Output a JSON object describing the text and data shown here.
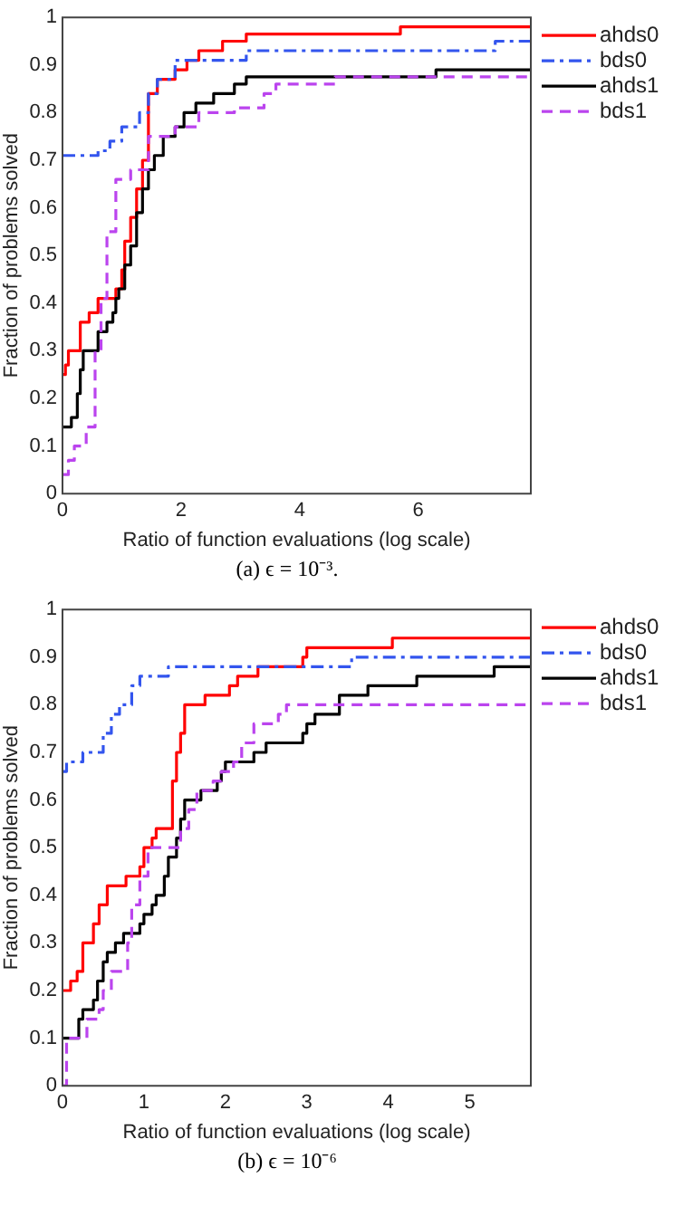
{
  "chart_data": [
    {
      "type": "step",
      "xlabel": "Ratio of function evaluations (log scale)",
      "ylabel": "Fraction of problems solved",
      "annotations": [
        "(a) ϵ = 10⁻³."
      ],
      "xlim": [
        0,
        7.9
      ],
      "xticks": [
        0,
        2,
        4,
        6
      ],
      "ylim": [
        0,
        1
      ],
      "yticks": [
        0,
        0.1,
        0.2,
        0.3,
        0.4,
        0.5,
        0.6,
        0.7,
        0.8,
        0.9,
        1
      ],
      "grid": false,
      "legend": "top right",
      "series": [
        {
          "name": "ahds0",
          "color": "#ff0000",
          "line_style": "solid",
          "x": [
            0,
            0.05,
            0.1,
            0.3,
            0.45,
            0.6,
            0.9,
            1.0,
            1.05,
            1.15,
            1.25,
            1.35,
            1.45,
            1.6,
            1.9,
            2.1,
            2.3,
            2.7,
            3.1,
            5.7,
            7.9
          ],
          "values": [
            0.25,
            0.27,
            0.3,
            0.36,
            0.38,
            0.41,
            0.43,
            0.47,
            0.53,
            0.58,
            0.64,
            0.7,
            0.84,
            0.87,
            0.89,
            0.91,
            0.93,
            0.95,
            0.965,
            0.98,
            0.98
          ]
        },
        {
          "name": "bds0",
          "color": "#3355ee",
          "line_style": "dashdot",
          "x": [
            0,
            0.6,
            0.8,
            1.0,
            1.3,
            1.45,
            1.6,
            1.9,
            3.1,
            7.3,
            7.9
          ],
          "values": [
            0.71,
            0.72,
            0.74,
            0.77,
            0.8,
            0.84,
            0.87,
            0.91,
            0.93,
            0.95,
            0.95
          ]
        },
        {
          "name": "ahds1",
          "color": "#000000",
          "line_style": "solid",
          "x": [
            0,
            0.15,
            0.25,
            0.3,
            0.35,
            0.6,
            0.75,
            0.85,
            0.9,
            0.95,
            1.05,
            1.15,
            1.25,
            1.35,
            1.45,
            1.55,
            1.7,
            1.9,
            2.05,
            2.25,
            2.55,
            2.9,
            3.1,
            6.3,
            7.9
          ],
          "values": [
            0.14,
            0.16,
            0.21,
            0.26,
            0.3,
            0.34,
            0.36,
            0.38,
            0.41,
            0.43,
            0.48,
            0.52,
            0.59,
            0.64,
            0.68,
            0.71,
            0.75,
            0.77,
            0.8,
            0.82,
            0.84,
            0.86,
            0.875,
            0.89,
            0.89
          ]
        },
        {
          "name": "bds1",
          "color": "#bb44ee",
          "line_style": "dashed",
          "x": [
            0,
            0.1,
            0.2,
            0.4,
            0.55,
            0.65,
            0.75,
            0.9,
            1.15,
            1.45,
            1.9,
            2.3,
            2.9,
            3.4,
            3.6,
            4.6,
            7.9
          ],
          "values": [
            0.04,
            0.07,
            0.1,
            0.14,
            0.3,
            0.41,
            0.55,
            0.66,
            0.68,
            0.75,
            0.77,
            0.8,
            0.81,
            0.84,
            0.86,
            0.875,
            0.875
          ]
        }
      ]
    },
    {
      "type": "step",
      "xlabel": "Ratio of function evaluations (log scale)",
      "ylabel": "Fraction of problems solved",
      "annotations": [
        "(b) ϵ = 10⁻⁶"
      ],
      "xlim": [
        0,
        5.75
      ],
      "xticks": [
        0,
        1,
        2,
        3,
        4,
        5
      ],
      "ylim": [
        0,
        1
      ],
      "yticks": [
        0,
        0.1,
        0.2,
        0.3,
        0.4,
        0.5,
        0.6,
        0.7,
        0.8,
        0.9,
        1
      ],
      "grid": false,
      "legend": "top right",
      "series": [
        {
          "name": "ahds0",
          "color": "#ff0000",
          "line_style": "solid",
          "x": [
            0,
            0.1,
            0.18,
            0.25,
            0.38,
            0.45,
            0.55,
            0.78,
            0.95,
            1.0,
            1.1,
            1.15,
            1.35,
            1.4,
            1.45,
            1.5,
            1.75,
            2.05,
            2.15,
            2.4,
            2.95,
            3.0,
            4.05,
            5.75
          ],
          "values": [
            0.2,
            0.22,
            0.24,
            0.3,
            0.34,
            0.38,
            0.42,
            0.44,
            0.46,
            0.5,
            0.52,
            0.54,
            0.64,
            0.7,
            0.74,
            0.8,
            0.82,
            0.84,
            0.86,
            0.88,
            0.9,
            0.92,
            0.94,
            0.94
          ]
        },
        {
          "name": "bds0",
          "color": "#3355ee",
          "line_style": "dashdot",
          "x": [
            0,
            0.05,
            0.25,
            0.5,
            0.6,
            0.7,
            0.85,
            0.95,
            1.3,
            3.55,
            5.75
          ],
          "values": [
            0.66,
            0.68,
            0.7,
            0.74,
            0.78,
            0.8,
            0.84,
            0.86,
            0.88,
            0.9,
            0.9
          ]
        },
        {
          "name": "ahds1",
          "color": "#000000",
          "line_style": "solid",
          "x": [
            0,
            0.2,
            0.25,
            0.38,
            0.43,
            0.5,
            0.55,
            0.65,
            0.75,
            0.95,
            1.0,
            1.1,
            1.15,
            1.25,
            1.3,
            1.4,
            1.45,
            1.5,
            1.7,
            1.9,
            1.95,
            2.0,
            2.35,
            2.5,
            2.95,
            3.0,
            3.1,
            3.4,
            3.75,
            4.35,
            5.3,
            5.75
          ],
          "values": [
            0.1,
            0.14,
            0.16,
            0.18,
            0.22,
            0.26,
            0.28,
            0.3,
            0.32,
            0.34,
            0.36,
            0.38,
            0.4,
            0.44,
            0.48,
            0.52,
            0.56,
            0.6,
            0.62,
            0.64,
            0.66,
            0.68,
            0.7,
            0.72,
            0.74,
            0.76,
            0.78,
            0.82,
            0.84,
            0.86,
            0.88,
            0.88
          ]
        },
        {
          "name": "bds1",
          "color": "#bb44ee",
          "line_style": "dashed",
          "x": [
            0,
            0.05,
            0.3,
            0.45,
            0.5,
            0.6,
            0.8,
            0.85,
            0.95,
            1.05,
            1.45,
            1.55,
            1.65,
            1.85,
            1.95,
            2.1,
            2.2,
            2.35,
            2.65,
            2.75,
            5.75
          ],
          "values": [
            0,
            0.1,
            0.14,
            0.16,
            0.2,
            0.24,
            0.3,
            0.38,
            0.44,
            0.5,
            0.54,
            0.58,
            0.62,
            0.64,
            0.66,
            0.68,
            0.72,
            0.76,
            0.78,
            0.8,
            0.8
          ]
        }
      ]
    }
  ]
}
